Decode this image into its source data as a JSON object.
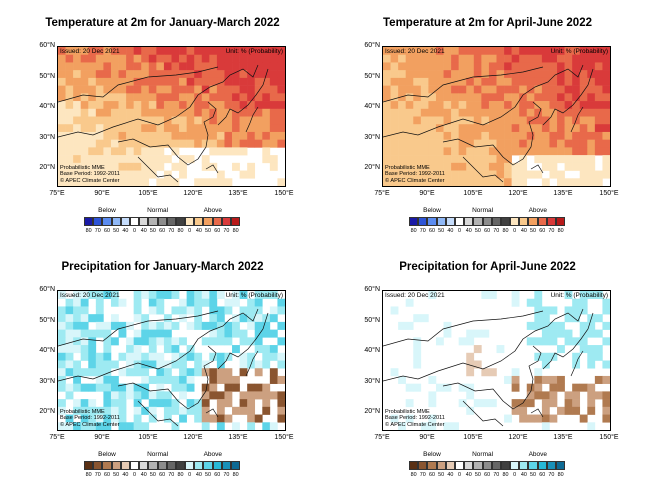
{
  "panels": [
    {
      "title": "Temperature at 2m for January-March 2022",
      "type": "temp"
    },
    {
      "title": "Temperature at 2m for April-June 2022",
      "type": "temp"
    },
    {
      "title": "Precipitation for January-March 2022",
      "type": "precip"
    },
    {
      "title": "Precipitation for April-June 2022",
      "type": "precip"
    }
  ],
  "issued": "Issued: 20 Dec 2021",
  "unit": "Unit: % (Probability)",
  "credits": [
    "Probabilistic MME",
    "Base Period: 1992-2011",
    "© APEC Climate Center"
  ],
  "lat_labels": [
    "60°N",
    "50°N",
    "40°N",
    "30°N",
    "20°N"
  ],
  "lon_labels": [
    "75°E",
    "90°E",
    "105°E",
    "120°E",
    "135°E",
    "150°E"
  ],
  "legend": {
    "below": "Below",
    "normal": "Normal",
    "above": "Above",
    "ticks": [
      "80",
      "70",
      "60",
      "50",
      "40",
      "0",
      "40",
      "50",
      "60",
      "70",
      "80",
      "0",
      "40",
      "50",
      "60",
      "70",
      "80"
    ],
    "temp_colors": {
      "below": [
        "#1a1aa6",
        "#2d54d6",
        "#5b8cf0",
        "#8fb8f7",
        "#c5dcfb"
      ],
      "normal": [
        "#ffffff",
        "#d9d9d9",
        "#b3b3b3",
        "#8c8c8c",
        "#666666",
        "#404040"
      ],
      "above": [
        "#fde6c0",
        "#f9c98c",
        "#f2a060",
        "#e8694a",
        "#d93a3a",
        "#b81a1a"
      ]
    },
    "precip_colors": {
      "below": [
        "#5a3014",
        "#8a5530",
        "#b07a50",
        "#cca080",
        "#e6cbb5"
      ],
      "normal": [
        "#ffffff",
        "#d9d9d9",
        "#b3b3b3",
        "#8c8c8c",
        "#666666",
        "#404040"
      ],
      "above": [
        "#d8f6fa",
        "#9eeaf2",
        "#5dd4e8",
        "#27b8d6",
        "#1a90b8",
        "#0e6a94"
      ]
    }
  }
}
